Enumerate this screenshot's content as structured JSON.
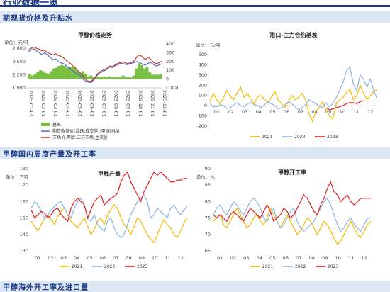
{
  "page": {
    "top_title": "行业数据一览",
    "sections": [
      "期现货价格及升贴水",
      "甲醇国内周度产量及开工率",
      "甲醇海外开工率及进口量"
    ]
  },
  "colors": {
    "section_bg": "#dbe7f3",
    "section_text": "#1b3a82",
    "c2021": "#f5b800",
    "c2022": "#8eb4e3",
    "c2023": "#e31d1d",
    "basis": "#7ac143",
    "futures": "#5b6cc9",
    "spot": "#c0392b"
  },
  "chart_data": [
    {
      "id": "price",
      "type": "line",
      "title": "甲醇价格走势",
      "ylabel": "单位：元/吨",
      "ylim_left": [
        1900,
        2900
      ],
      "yticks_left": [
        "2,800",
        "2,500",
        "2,200",
        "1,900"
      ],
      "ylim_right": [
        -100,
        400
      ],
      "yticks_right": [
        "400",
        "300",
        "200",
        "100",
        "0",
        "(100)"
      ],
      "xticks": [
        "2023-01-01",
        "2023-02-01",
        "2023-03-01",
        "2023-04-01",
        "2023-05-01",
        "2023-06-01",
        "2023-07-01",
        "2023-08-01",
        "2023-09-01",
        "2023-10-01",
        "2023-11-01",
        "2023-12-01"
      ],
      "legend": [
        "基差",
        "期货收盘价(活跃:成交量):甲醇(MA)",
        "市场价:甲醇:江苏市场:主流价"
      ],
      "futures": [
        2720,
        2760,
        2790,
        2740,
        2700,
        2660,
        2700,
        2650,
        2600,
        2540,
        2560,
        2500,
        2470,
        2450,
        2400,
        2350,
        2300,
        2250,
        2220,
        2180,
        2100,
        2060,
        2030,
        2020,
        2080,
        2160,
        2230,
        2260,
        2290,
        2330,
        2380,
        2360,
        2410,
        2430,
        2460,
        2450,
        2430,
        2440,
        2460,
        2480,
        2500,
        2470,
        2440,
        2420,
        2460,
        2480,
        2430,
        2400,
        2420,
        2450
      ],
      "spot": [
        2760,
        2800,
        2830,
        2800,
        2780,
        2740,
        2760,
        2700,
        2680,
        2650,
        2680,
        2640,
        2620,
        2580,
        2520,
        2480,
        2420,
        2370,
        2300,
        2250,
        2180,
        2100,
        2050,
        2050,
        2100,
        2180,
        2260,
        2290,
        2320,
        2350,
        2400,
        2380,
        2430,
        2460,
        2480,
        2490,
        2460,
        2460,
        2480,
        2520,
        2620,
        2650,
        2600,
        2540,
        2600,
        2550,
        2480,
        2450,
        2470,
        2510
      ],
      "basis": [
        60,
        40,
        60,
        80,
        100,
        90,
        70,
        60,
        90,
        120,
        130,
        150,
        160,
        150,
        130,
        140,
        140,
        130,
        90,
        70,
        90,
        60,
        30,
        40,
        20,
        20,
        30,
        30,
        30,
        20,
        30,
        20,
        20,
        30,
        20,
        40,
        20,
        20,
        20,
        40,
        120,
        180,
        160,
        120,
        140,
        80,
        50,
        50,
        50,
        60
      ]
    },
    {
      "id": "basis_port",
      "type": "line",
      "title": "港口-主力合约基差",
      "ylabel": "单位：元/吨",
      "ylim": [
        -200,
        500
      ],
      "yticks": [
        "500",
        "400",
        "300",
        "200",
        "100",
        "0",
        "-100",
        "-200"
      ],
      "xticks": [
        "01",
        "02",
        "03",
        "04",
        "05",
        "06",
        "07",
        "08",
        "09",
        "10",
        "11",
        "12"
      ],
      "legend": [
        "2021",
        "2022",
        "2023"
      ],
      "series": [
        {
          "name": "2021",
          "values": [
            40,
            120,
            60,
            20,
            80,
            150,
            90,
            60,
            130,
            180,
            80,
            120,
            60,
            20,
            90,
            100,
            60,
            30,
            80,
            140,
            60,
            20,
            -20,
            40,
            100,
            60,
            80,
            120,
            60,
            -80,
            -150,
            -60,
            -20,
            40,
            -40,
            -100,
            -130,
            20,
            60,
            80,
            130,
            160,
            60,
            100,
            200,
            120,
            60,
            100,
            140,
            160
          ]
        },
        {
          "name": "2022",
          "values": [
            20,
            -10,
            -10,
            10,
            0,
            -30,
            -20,
            10,
            30,
            0,
            -10,
            20,
            30,
            10,
            0,
            -20,
            10,
            40,
            20,
            0,
            -30,
            -20,
            10,
            40,
            20,
            -10,
            -40,
            -20,
            10,
            60,
            40,
            20,
            0,
            -20,
            30,
            -10,
            20,
            80,
            150,
            230,
            340,
            380,
            210,
            150,
            300,
            260,
            180,
            260,
            150,
            60
          ]
        },
        {
          "name": "2023",
          "values": [
            null,
            null,
            null,
            null,
            null,
            null,
            null,
            null,
            null,
            null,
            null,
            null,
            null,
            null,
            null,
            null,
            null,
            null,
            null,
            null,
            null,
            null,
            null,
            null,
            null,
            null,
            null,
            null,
            null,
            null,
            null,
            null,
            null,
            null,
            -20,
            -40,
            -30,
            -20,
            -10,
            0,
            20,
            30,
            30,
            20,
            40,
            50,
            null,
            null,
            null,
            null
          ]
        }
      ]
    },
    {
      "id": "output",
      "type": "line",
      "title": "甲醇产量",
      "ylabel": "单位：万吨",
      "ylim": [
        130,
        180
      ],
      "yticks": [
        "180",
        "170",
        "160",
        "150",
        "140",
        "130"
      ],
      "xticks": [
        "01",
        "02",
        "03",
        "04",
        "05",
        "06",
        "07",
        "08",
        "09",
        "10",
        "11",
        "12"
      ],
      "legend": [
        "2021",
        "2022",
        "2023"
      ],
      "series": [
        {
          "name": "2021",
          "values": [
            148,
            145,
            142,
            146,
            150,
            152,
            149,
            146,
            151,
            154,
            156,
            152,
            148,
            146,
            144,
            147,
            150,
            145,
            140,
            143,
            148,
            150,
            146,
            152,
            155,
            158,
            156,
            150,
            146,
            144,
            140,
            145,
            150,
            148,
            144,
            140,
            137,
            135,
            140,
            145,
            149,
            146,
            144,
            140,
            138,
            142,
            147,
            150
          ]
        },
        {
          "name": "2022",
          "values": [
            156,
            160,
            158,
            154,
            150,
            152,
            155,
            157,
            159,
            160,
            156,
            152,
            150,
            156,
            160,
            162,
            158,
            150,
            148,
            152,
            146,
            144,
            142,
            148,
            150,
            144,
            140,
            138,
            140,
            146,
            152,
            156,
            160,
            162,
            164,
            160,
            150,
            152,
            156,
            154,
            152,
            150,
            156,
            158,
            154,
            152,
            155,
            157
          ]
        },
        {
          "name": "2023",
          "values": [
            155,
            150,
            152,
            154,
            153,
            150,
            152,
            155,
            156,
            152,
            150,
            148,
            156,
            160,
            162,
            160,
            158,
            150,
            155,
            160,
            162,
            164,
            158,
            160,
            162,
            163,
            165,
            172,
            176,
            178,
            172,
            168,
            164,
            160,
            166,
            170,
            174,
            178,
            176,
            178,
            176,
            174,
            172,
            172,
            173,
            173,
            174,
            174
          ]
        }
      ]
    },
    {
      "id": "utilization",
      "type": "line",
      "title": "甲醇开工率",
      "ylabel": "单位：%",
      "ylim": [
        65,
        90
      ],
      "yticks": [
        "90",
        "85",
        "80",
        "75",
        "70",
        "65"
      ],
      "xticks": [
        "01",
        "02",
        "03",
        "04",
        "05",
        "06",
        "07",
        "08",
        "09",
        "10",
        "11",
        "12"
      ],
      "legend": [
        "2021",
        "2022",
        "2023"
      ],
      "series": [
        {
          "name": "2021",
          "values": [
            74,
            75,
            76,
            73,
            72,
            74,
            76,
            78,
            76,
            74,
            72,
            73,
            75,
            76,
            74,
            73,
            75,
            78,
            76,
            74,
            72,
            74,
            76,
            74,
            72,
            70,
            71,
            73,
            75,
            74,
            72,
            70,
            72,
            74,
            73,
            71,
            69,
            67,
            68,
            70,
            72,
            74,
            72,
            70,
            69,
            71,
            73,
            74
          ]
        },
        {
          "name": "2022",
          "values": [
            76,
            78,
            79,
            77,
            76,
            78,
            80,
            79,
            77,
            76,
            78,
            80,
            81,
            80,
            78,
            75,
            74,
            76,
            78,
            74,
            72,
            73,
            75,
            77,
            78,
            74,
            72,
            71,
            72,
            73,
            74,
            76,
            78,
            80,
            81,
            79,
            76,
            73,
            71,
            72,
            74,
            75,
            73,
            72,
            71,
            73,
            75,
            75
          ]
        },
        {
          "name": "2023",
          "values": [
            76,
            75,
            76,
            75,
            74,
            76,
            77,
            76,
            75,
            74,
            76,
            78,
            77,
            76,
            75,
            77,
            79,
            77,
            74,
            75,
            76,
            78,
            77,
            75,
            76,
            78,
            80,
            82,
            81,
            79,
            77,
            76,
            79,
            81,
            84,
            86,
            83,
            82,
            80,
            81,
            82,
            80,
            79,
            80,
            81,
            81,
            81,
            81
          ]
        }
      ]
    }
  ]
}
